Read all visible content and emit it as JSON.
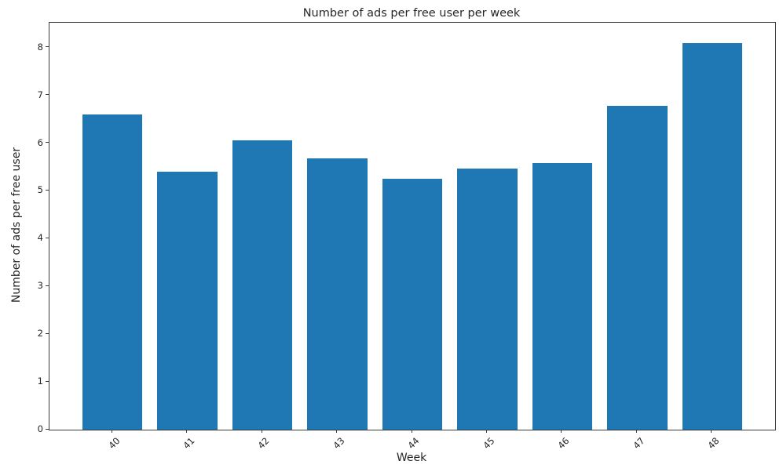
{
  "chart_data": {
    "type": "bar",
    "title": "Number of ads per free user per week",
    "xlabel": "Week",
    "ylabel": "Number of ads per free user",
    "categories": [
      "40",
      "41",
      "42",
      "43",
      "44",
      "45",
      "46",
      "47",
      "48"
    ],
    "x": [
      40,
      41,
      42,
      43,
      44,
      45,
      46,
      47,
      48
    ],
    "values": [
      6.6,
      5.4,
      6.05,
      5.68,
      5.25,
      5.47,
      5.58,
      6.78,
      8.1
    ],
    "bar_color": "#1f77b4",
    "bar_width": 0.8,
    "xlim": [
      39.16,
      48.84
    ],
    "ylim": [
      0,
      8.52
    ],
    "yticks": [
      0,
      1,
      2,
      3,
      4,
      5,
      6,
      7,
      8
    ],
    "xtick_rotation": 45,
    "grid": false,
    "legend_position": "none"
  },
  "figure": {
    "background": "#ffffff",
    "spine_color": "#3a3a3a",
    "text_color": "#262626"
  }
}
